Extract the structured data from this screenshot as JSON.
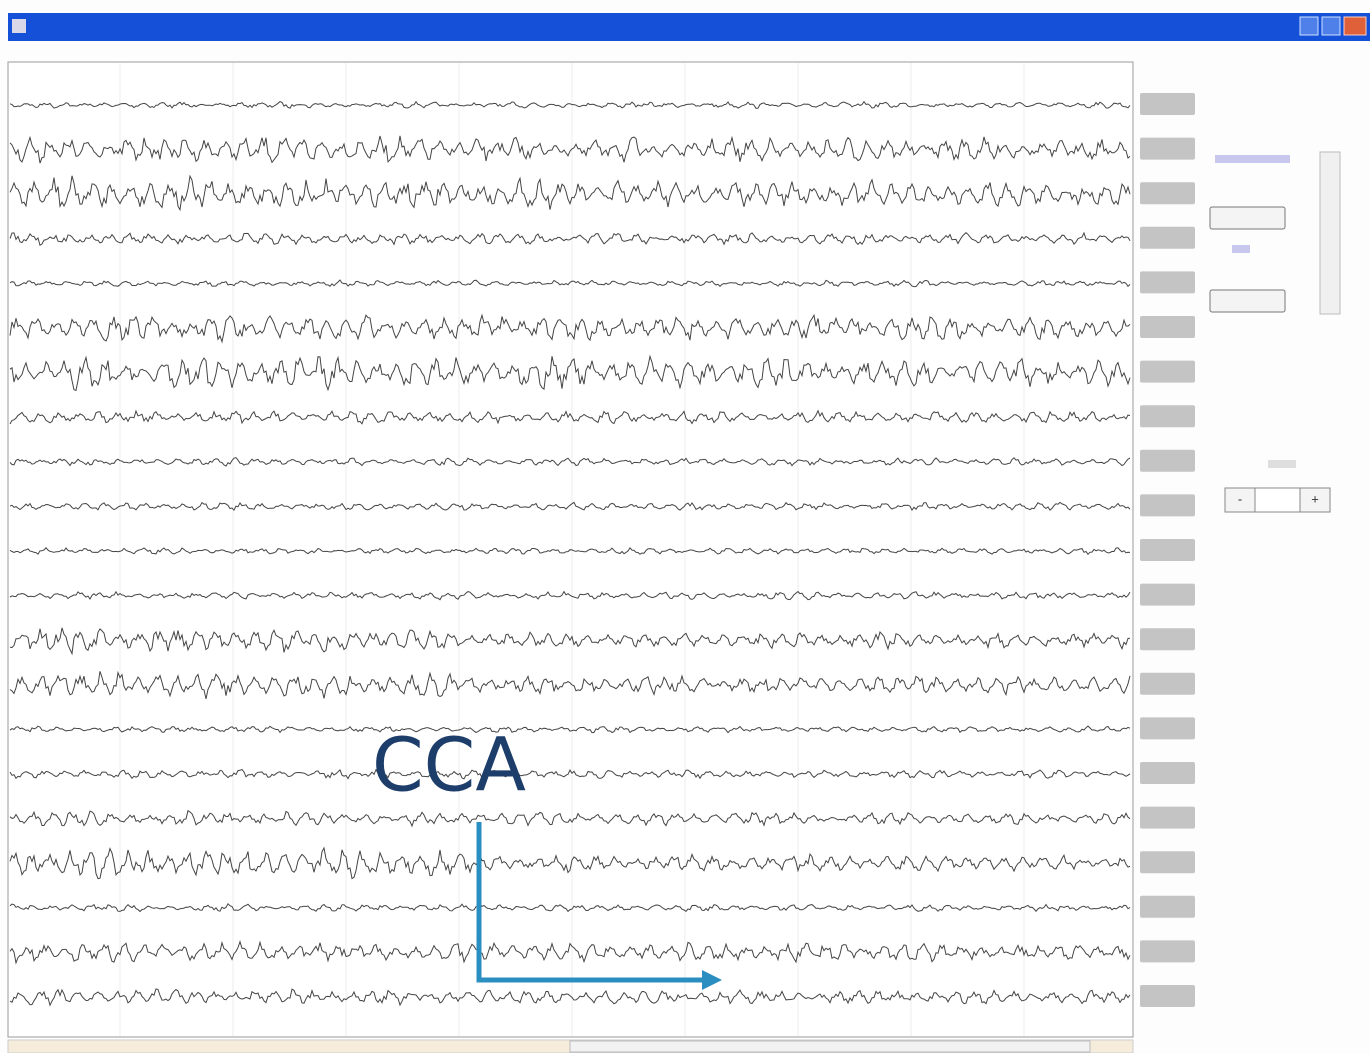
{
  "annotation": {
    "label": "CCA"
  },
  "controls": {
    "decrease": "-",
    "increase": "+"
  }
}
